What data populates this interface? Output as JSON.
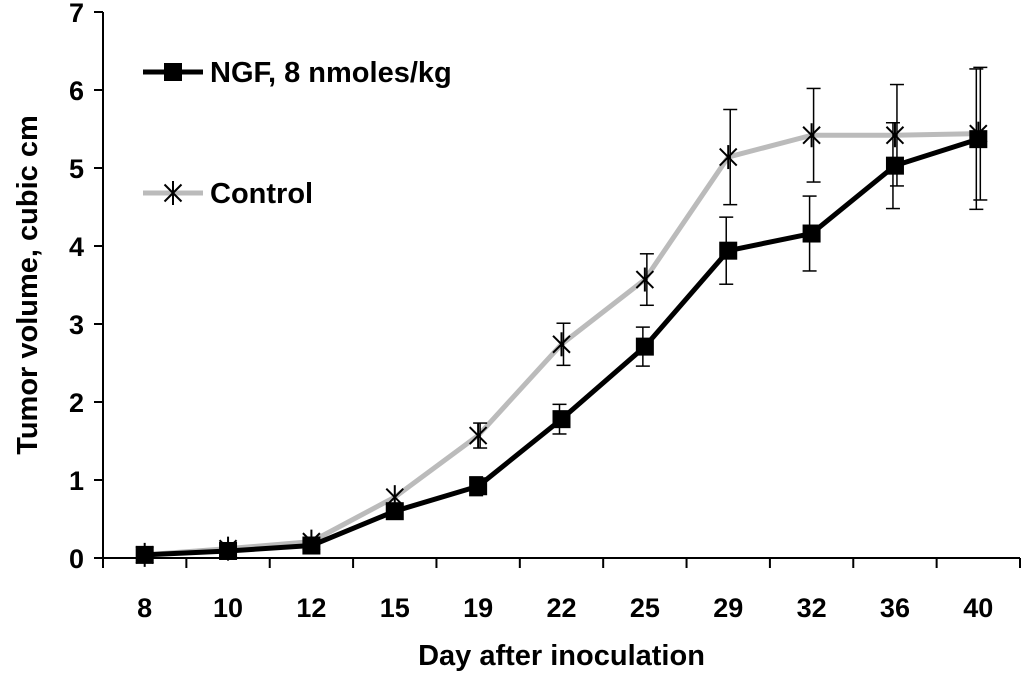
{
  "chart_data": {
    "type": "line",
    "title": "",
    "xlabel": "Day after inoculation",
    "ylabel": "Tumor volume, cubic cm",
    "categories": [
      "8",
      "10",
      "12",
      "15",
      "19",
      "22",
      "25",
      "29",
      "32",
      "36",
      "40"
    ],
    "yticks": [
      "0",
      "1",
      "2",
      "3",
      "4",
      "5",
      "6",
      "7"
    ],
    "ylim": [
      0,
      7
    ],
    "grid": false,
    "legend_position": "top-left",
    "series": [
      {
        "name": "NGF, 8 nmoles/kg",
        "color": "#000000",
        "marker": "square",
        "values": [
          0.04,
          0.09,
          0.16,
          0.6,
          0.92,
          1.78,
          2.71,
          3.94,
          4.16,
          5.03,
          5.37
        ],
        "error": [
          0,
          0,
          0,
          0,
          0.12,
          0.19,
          0.25,
          0.43,
          0.48,
          0.55,
          0.9
        ]
      },
      {
        "name": "Control",
        "color": "#bbbbbb",
        "marker": "star",
        "values": [
          0.04,
          0.12,
          0.21,
          0.78,
          1.57,
          2.74,
          3.57,
          5.14,
          5.42,
          5.42,
          5.44
        ],
        "error": [
          0,
          0,
          0,
          0,
          0.16,
          0.27,
          0.33,
          0.61,
          0.6,
          0.65,
          0.85
        ]
      }
    ]
  }
}
